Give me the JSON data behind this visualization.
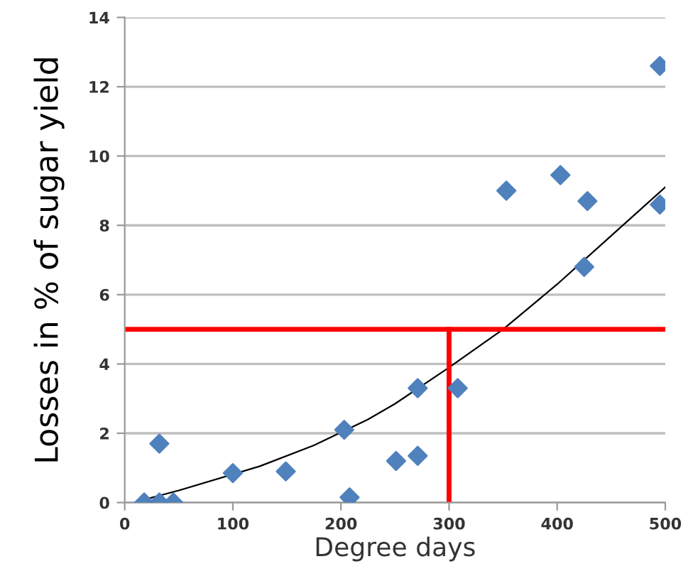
{
  "chart_data": {
    "type": "scatter",
    "xlabel": "Degree days",
    "ylabel": "Losses in % of sugar yield",
    "xlim": [
      0,
      500
    ],
    "xticks": [
      0,
      100,
      200,
      300,
      400,
      500
    ],
    "ylim": [
      0,
      14
    ],
    "yticks": [
      0,
      2,
      4,
      6,
      8,
      10,
      12,
      14
    ],
    "grid": "y",
    "series": [
      {
        "color": "#4f81bd",
        "marker": "diamond",
        "x": [
          18,
          32,
          32,
          45,
          100,
          149,
          203,
          208,
          251,
          271,
          271,
          308,
          353,
          403,
          425,
          428,
          495,
          495
        ],
        "values": [
          0,
          0,
          1.7,
          0,
          0.85,
          0.9,
          2.1,
          0.15,
          1.2,
          1.35,
          3.3,
          3.3,
          9.0,
          9.45,
          6.8,
          8.7,
          12.6,
          8.6
        ]
      },
      {
        "type": "line",
        "color": "#000000",
        "marker": "none",
        "x": [
          20,
          50,
          125,
          175,
          225,
          250,
          300,
          350,
          400,
          450,
          500
        ],
        "values": [
          0.1,
          0.35,
          1.05,
          1.65,
          2.4,
          2.85,
          3.9,
          5.0,
          6.3,
          7.7,
          9.1
        ]
      },
      {
        "type": "line",
        "color": "#ff0000",
        "marker": "none",
        "x": [
          300,
          300
        ],
        "values": [
          0,
          5
        ]
      }
    ],
    "ref_lines": [
      {
        "axis": "y",
        "value": 5,
        "color": "#ff0000"
      }
    ]
  }
}
